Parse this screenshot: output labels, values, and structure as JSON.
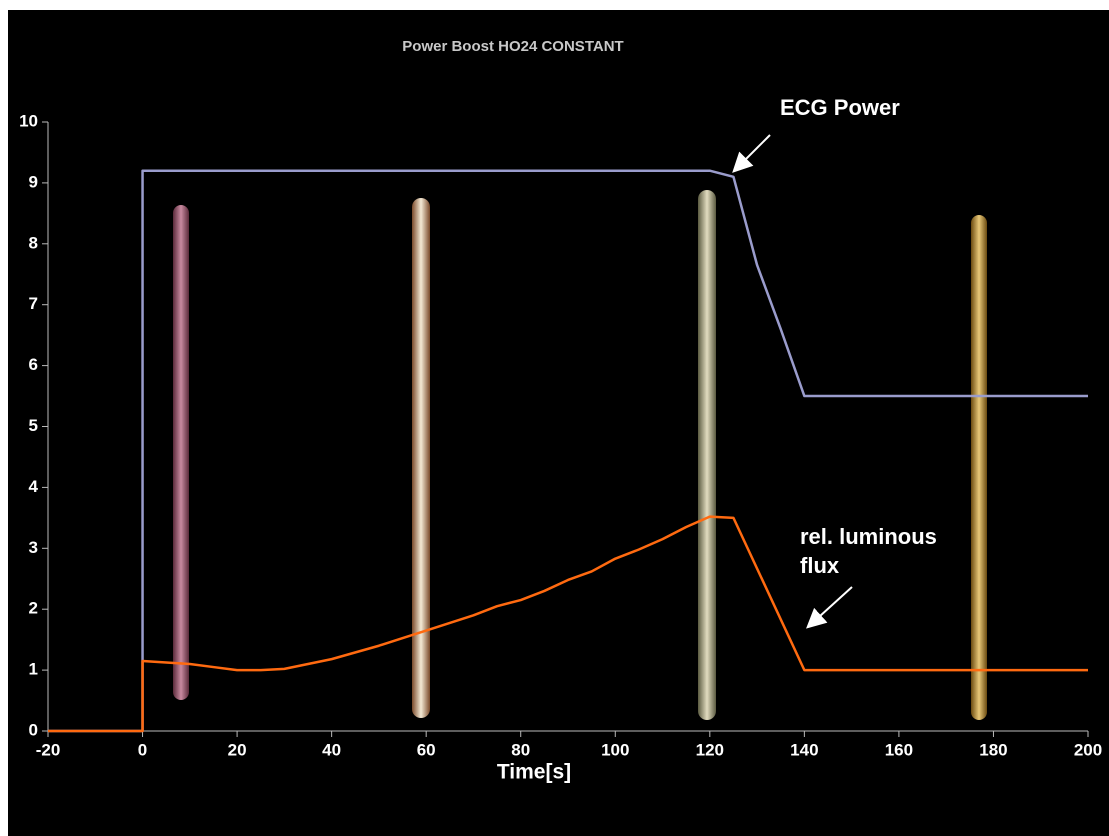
{
  "chart_data": {
    "type": "line",
    "title": "Power Boost HO24 CONSTANT",
    "x_label": "Time[s]",
    "series": [
      {
        "name": "ECG Power",
        "color": "#9a9ccc",
        "x": [
          -20,
          0,
          0,
          120,
          125,
          130,
          135,
          140,
          200
        ],
        "values": [
          0,
          0,
          9.2,
          9.2,
          9.1,
          7.65,
          6.6,
          5.5,
          5.5
        ]
      },
      {
        "name": "rel. luminous flux",
        "color": "#ff6a10",
        "x": [
          -20,
          0,
          0,
          10,
          15,
          20,
          25,
          30,
          40,
          50,
          60,
          70,
          75,
          80,
          85,
          90,
          95,
          100,
          105,
          110,
          115,
          120,
          125,
          140,
          200
        ],
        "values": [
          0,
          0,
          1.15,
          1.1,
          1.05,
          1.0,
          1.0,
          1.02,
          1.18,
          1.4,
          1.65,
          1.9,
          2.05,
          2.15,
          2.3,
          2.48,
          2.62,
          2.83,
          2.98,
          3.15,
          3.35,
          3.52,
          3.5,
          1.0,
          1.0
        ]
      }
    ],
    "xlim": [
      -20,
      200
    ],
    "xticks": [
      -20,
      0,
      20,
      40,
      60,
      80,
      100,
      120,
      140,
      160,
      180,
      200
    ],
    "ylim": [
      0,
      10
    ],
    "yticks": [
      0,
      1,
      2,
      3,
      4,
      5,
      6,
      7,
      8,
      9,
      10
    ]
  }
}
